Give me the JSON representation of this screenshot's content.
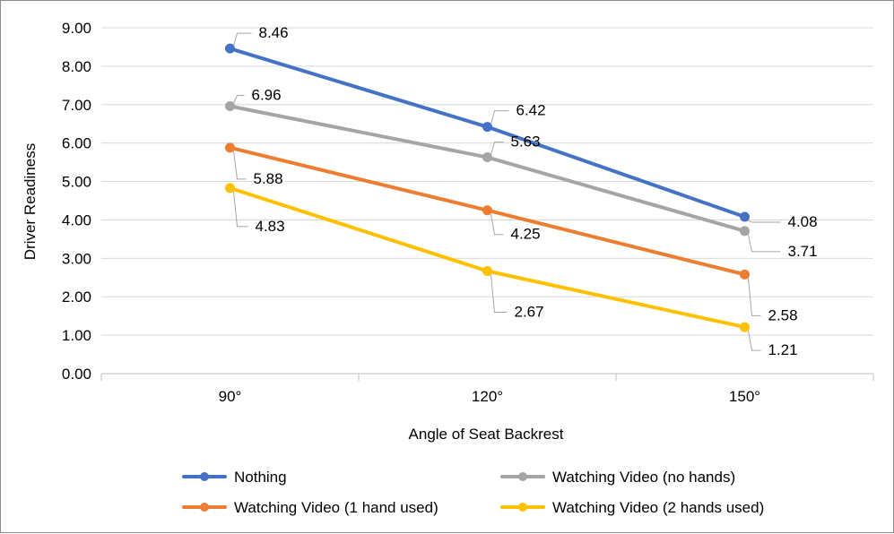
{
  "chart_data": {
    "type": "line",
    "title": "",
    "xlabel": "Angle of Seat Backrest",
    "ylabel": "Driver Readiness",
    "categories": [
      "90°",
      "120°",
      "150°"
    ],
    "ylim": [
      0,
      9
    ],
    "yticks": [
      "0.00",
      "1.00",
      "2.00",
      "3.00",
      "4.00",
      "5.00",
      "6.00",
      "7.00",
      "8.00",
      "9.00"
    ],
    "grid": true,
    "legend_position": "bottom",
    "series": [
      {
        "name": "Nothing",
        "color": "#4472c4",
        "values": [
          8.46,
          6.42,
          4.08
        ],
        "labels": [
          "8.46",
          "6.42",
          "4.08"
        ]
      },
      {
        "name": "Watching Video (no hands)",
        "color": "#a5a5a5",
        "values": [
          6.96,
          5.63,
          3.71
        ],
        "labels": [
          "6.96",
          "5.63",
          "3.71"
        ]
      },
      {
        "name": "Watching Video (1 hand used)",
        "color": "#ed7d31",
        "values": [
          5.88,
          4.25,
          2.58
        ],
        "labels": [
          "5.88",
          "4.25",
          "2.58"
        ]
      },
      {
        "name": "Watching Video (2 hands used)",
        "color": "#ffc000",
        "values": [
          4.83,
          2.67,
          1.21
        ],
        "labels": [
          "4.83",
          "2.67",
          "1.21"
        ]
      }
    ]
  }
}
